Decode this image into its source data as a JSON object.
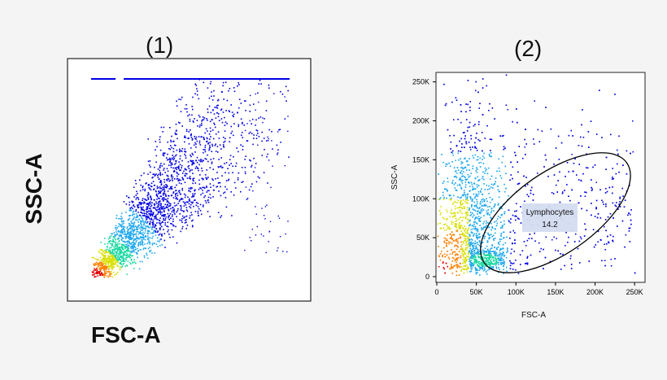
{
  "figure": {
    "panel1_label": "(1)",
    "panel2_label": "(2)",
    "big_ylabel": "SSC-A",
    "big_xlabel": "FSC-A"
  },
  "chart_data": [
    {
      "type": "scatter",
      "panel": "(1)",
      "xlabel": "",
      "ylabel": "",
      "ticks_shown": false,
      "description_colors": [
        "#0000e6",
        "#1fa8f0",
        "#18d8a0",
        "#d8e000",
        "#ff8000",
        "#e00000"
      ]
    },
    {
      "type": "scatter",
      "panel": "(2)",
      "xlabel": "FSC-A",
      "ylabel": "SSC-A",
      "xlim": [
        0,
        262144
      ],
      "ylim": [
        0,
        262144
      ],
      "x_ticks": [
        0,
        50000,
        100000,
        150000,
        200000,
        250000
      ],
      "x_tick_labels": [
        "0",
        "50K",
        "100K",
        "150K",
        "200K",
        "250K"
      ],
      "y_ticks": [
        0,
        50000,
        100000,
        150000,
        200000,
        250000
      ],
      "y_tick_labels": [
        "0",
        "50K",
        "100K",
        "150K",
        "200K",
        "250K"
      ],
      "gate": {
        "name": "Lymphocytes",
        "value": "14.2",
        "shape": "ellipse",
        "center": [
          150000,
          82000
        ],
        "semi_axes": [
          110000,
          52000
        ],
        "rotation_deg": 35
      }
    }
  ]
}
